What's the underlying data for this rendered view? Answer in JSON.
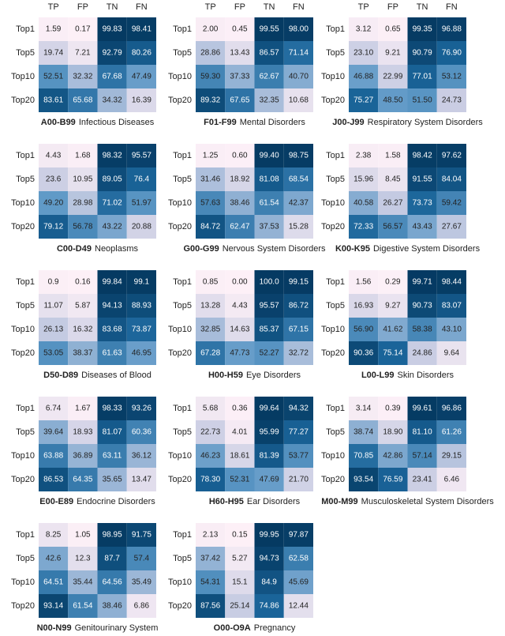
{
  "colorscale": [
    "#fdf0f7",
    "#c9cde3",
    "#5d98c6",
    "#1a6499",
    "#053a62"
  ],
  "vlim": [
    0,
    100
  ],
  "chart_data": [
    {
      "type": "heatmap",
      "code": "A00-B99",
      "title": "Infectious Diseases",
      "columns": [
        "TP",
        "FP",
        "TN",
        "FN"
      ],
      "rows": [
        "Top1",
        "Top5",
        "Top10",
        "Top20"
      ],
      "values": [
        [
          1.59,
          0.17,
          99.83,
          98.41
        ],
        [
          19.74,
          7.21,
          92.79,
          80.26
        ],
        [
          52.51,
          32.32,
          67.68,
          47.49
        ],
        [
          83.61,
          65.68,
          34.32,
          16.39
        ]
      ],
      "value_labels": [
        [
          "1.59",
          "0.17",
          "99.83",
          "98.41"
        ],
        [
          "19.74",
          "7.21",
          "92.79",
          "80.26"
        ],
        [
          "52.51",
          "32.32",
          "67.68",
          "47.49"
        ],
        [
          "83.61",
          "65.68",
          "34.32",
          "16.39"
        ]
      ]
    },
    {
      "type": "heatmap",
      "code": "F01-F99",
      "title": "Mental Disorders",
      "columns": [
        "TP",
        "FP",
        "TN",
        "FN"
      ],
      "rows": [
        "Top1",
        "Top5",
        "Top10",
        "Top20"
      ],
      "values": [
        [
          2.0,
          0.45,
          99.55,
          98.0
        ],
        [
          28.86,
          13.43,
          86.57,
          71.14
        ],
        [
          59.3,
          37.33,
          62.67,
          40.7
        ],
        [
          89.32,
          67.65,
          32.35,
          10.68
        ]
      ],
      "value_labels": [
        [
          "2.00",
          "0.45",
          "99.55",
          "98.00"
        ],
        [
          "28.86",
          "13.43",
          "86.57",
          "71.14"
        ],
        [
          "59.30",
          "37.33",
          "62.67",
          "40.70"
        ],
        [
          "89.32",
          "67.65",
          "32.35",
          "10.68"
        ]
      ]
    },
    {
      "type": "heatmap",
      "code": "J00-J99",
      "title": "Respiratory System Disorders",
      "columns": [
        "TP",
        "FP",
        "TN",
        "FN"
      ],
      "rows": [
        "Top1",
        "Top5",
        "Top10",
        "Top20"
      ],
      "values": [
        [
          3.12,
          0.65,
          99.35,
          96.88
        ],
        [
          23.1,
          9.21,
          90.79,
          76.9
        ],
        [
          46.88,
          22.99,
          77.01,
          53.12
        ],
        [
          75.27,
          48.5,
          51.5,
          24.73
        ]
      ],
      "value_labels": [
        [
          "3.12",
          "0.65",
          "99.35",
          "96.88"
        ],
        [
          "23.10",
          "9.21",
          "90.79",
          "76.90"
        ],
        [
          "46.88",
          "22.99",
          "77.01",
          "53.12"
        ],
        [
          "75.27",
          "48.50",
          "51.50",
          "24.73"
        ]
      ]
    },
    {
      "type": "heatmap",
      "code": "C00-D49",
      "title": "Neoplasms",
      "rows": [
        "Top1",
        "Top5",
        "Top10",
        "Top20"
      ],
      "values": [
        [
          4.43,
          1.68,
          98.32,
          95.57
        ],
        [
          23.6,
          10.95,
          89.05,
          76.4
        ],
        [
          49.2,
          28.98,
          71.02,
          51.97
        ],
        [
          79.12,
          56.78,
          43.22,
          20.88
        ]
      ],
      "value_labels": [
        [
          "4.43",
          "1.68",
          "98.32",
          "95.57"
        ],
        [
          "23.6",
          "10.95",
          "89.05",
          "76.4"
        ],
        [
          "49.20",
          "28.98",
          "71.02",
          "51.97"
        ],
        [
          "79.12",
          "56.78",
          "43.22",
          "20.88"
        ]
      ]
    },
    {
      "type": "heatmap",
      "code": "G00-G99",
      "title": "Nervous System Disorders",
      "rows": [
        "Top1",
        "Top5",
        "Top10",
        "Top20"
      ],
      "values": [
        [
          1.25,
          0.6,
          99.4,
          98.75
        ],
        [
          31.46,
          18.92,
          81.08,
          68.54
        ],
        [
          57.63,
          38.46,
          61.54,
          42.37
        ],
        [
          84.72,
          62.47,
          37.53,
          15.28
        ]
      ],
      "value_labels": [
        [
          "1.25",
          "0.60",
          "99.40",
          "98.75"
        ],
        [
          "31.46",
          "18.92",
          "81.08",
          "68.54"
        ],
        [
          "57.63",
          "38.46",
          "61.54",
          "42.37"
        ],
        [
          "84.72",
          "62.47",
          "37.53",
          "15.28"
        ]
      ]
    },
    {
      "type": "heatmap",
      "code": "K00-K95",
      "title": "Digestive System Disorders",
      "rows": [
        "Top1",
        "Top5",
        "Top10",
        "Top20"
      ],
      "values": [
        [
          2.38,
          1.58,
          98.42,
          97.62
        ],
        [
          15.96,
          8.45,
          91.55,
          84.04
        ],
        [
          40.58,
          26.27,
          73.73,
          59.42
        ],
        [
          72.33,
          56.57,
          43.43,
          27.67
        ]
      ],
      "value_labels": [
        [
          "2.38",
          "1.58",
          "98.42",
          "97.62"
        ],
        [
          "15.96",
          "8.45",
          "91.55",
          "84.04"
        ],
        [
          "40.58",
          "26.27",
          "73.73",
          "59.42"
        ],
        [
          "72.33",
          "56.57",
          "43.43",
          "27.67"
        ]
      ]
    },
    {
      "type": "heatmap",
      "code": "D50-D89",
      "title": "Diseases of Blood",
      "rows": [
        "Top1",
        "Top5",
        "Top10",
        "Top20"
      ],
      "values": [
        [
          0.9,
          0.16,
          99.84,
          99.1
        ],
        [
          11.07,
          5.87,
          94.13,
          88.93
        ],
        [
          26.13,
          16.32,
          83.68,
          73.87
        ],
        [
          53.05,
          38.37,
          61.63,
          46.95
        ]
      ],
      "value_labels": [
        [
          "0.9",
          "0.16",
          "99.84",
          "99.1"
        ],
        [
          "11.07",
          "5.87",
          "94.13",
          "88.93"
        ],
        [
          "26.13",
          "16.32",
          "83.68",
          "73.87"
        ],
        [
          "53.05",
          "38.37",
          "61.63",
          "46.95"
        ]
      ]
    },
    {
      "type": "heatmap",
      "code": "H00-H59",
      "title": "Eye Disorders",
      "rows": [
        "Top1",
        "Top5",
        "Top10",
        "Top20"
      ],
      "values": [
        [
          0.85,
          0.0,
          100.0,
          99.15
        ],
        [
          13.28,
          4.43,
          95.57,
          86.72
        ],
        [
          32.85,
          14.63,
          85.37,
          67.15
        ],
        [
          67.28,
          47.73,
          52.27,
          32.72
        ]
      ],
      "value_labels": [
        [
          "0.85",
          "0.00",
          "100.0",
          "99.15"
        ],
        [
          "13.28",
          "4.43",
          "95.57",
          "86.72"
        ],
        [
          "32.85",
          "14.63",
          "85.37",
          "67.15"
        ],
        [
          "67.28",
          "47.73",
          "52.27",
          "32.72"
        ]
      ]
    },
    {
      "type": "heatmap",
      "code": "L00-L99",
      "title": "Skin Disorders",
      "rows": [
        "Top1",
        "Top5",
        "Top10",
        "Top20"
      ],
      "values": [
        [
          1.56,
          0.29,
          99.71,
          98.44
        ],
        [
          16.93,
          9.27,
          90.73,
          83.07
        ],
        [
          56.9,
          41.62,
          58.38,
          43.1
        ],
        [
          90.36,
          75.14,
          24.86,
          9.64
        ]
      ],
      "value_labels": [
        [
          "1.56",
          "0.29",
          "99.71",
          "98.44"
        ],
        [
          "16.93",
          "9.27",
          "90.73",
          "83.07"
        ],
        [
          "56.90",
          "41.62",
          "58.38",
          "43.10"
        ],
        [
          "90.36",
          "75.14",
          "24.86",
          "9.64"
        ]
      ]
    },
    {
      "type": "heatmap",
      "code": "E00-E89",
      "title": "Endocrine Disorders",
      "rows": [
        "Top1",
        "Top5",
        "Top10",
        "Top20"
      ],
      "values": [
        [
          6.74,
          1.67,
          98.33,
          93.26
        ],
        [
          39.64,
          18.93,
          81.07,
          60.36
        ],
        [
          63.88,
          36.89,
          63.11,
          36.12
        ],
        [
          86.53,
          64.35,
          35.65,
          13.47
        ]
      ],
      "value_labels": [
        [
          "6.74",
          "1.67",
          "98.33",
          "93.26"
        ],
        [
          "39.64",
          "18.93",
          "81.07",
          "60.36"
        ],
        [
          "63.88",
          "36.89",
          "63.11",
          "36.12"
        ],
        [
          "86.53",
          "64.35",
          "35.65",
          "13.47"
        ]
      ]
    },
    {
      "type": "heatmap",
      "code": "H60-H95",
      "title": "Ear Disorders",
      "rows": [
        "Top1",
        "Top5",
        "Top10",
        "Top20"
      ],
      "values": [
        [
          5.68,
          0.36,
          99.64,
          94.32
        ],
        [
          22.73,
          4.01,
          95.99,
          77.27
        ],
        [
          46.23,
          18.61,
          81.39,
          53.77
        ],
        [
          78.3,
          52.31,
          47.69,
          21.7
        ]
      ],
      "value_labels": [
        [
          "5.68",
          "0.36",
          "99.64",
          "94.32"
        ],
        [
          "22.73",
          "4.01",
          "95.99",
          "77.27"
        ],
        [
          "46.23",
          "18.61",
          "81.39",
          "53.77"
        ],
        [
          "78.30",
          "52.31",
          "47.69",
          "21.70"
        ]
      ]
    },
    {
      "type": "heatmap",
      "code": "M00-M99",
      "title": "Musculoskeletal System Disorders",
      "rows": [
        "Top1",
        "Top5",
        "Top10",
        "Top20"
      ],
      "values": [
        [
          3.14,
          0.39,
          99.61,
          96.86
        ],
        [
          38.74,
          18.9,
          81.1,
          61.26
        ],
        [
          70.85,
          42.86,
          57.14,
          29.15
        ],
        [
          93.54,
          76.59,
          23.41,
          6.46
        ]
      ],
      "value_labels": [
        [
          "3.14",
          "0.39",
          "99.61",
          "96.86"
        ],
        [
          "38.74",
          "18.90",
          "81.10",
          "61.26"
        ],
        [
          "70.85",
          "42.86",
          "57.14",
          "29.15"
        ],
        [
          "93.54",
          "76.59",
          "23.41",
          "6.46"
        ]
      ]
    },
    {
      "type": "heatmap",
      "code": "N00-N99",
      "title": "Genitourinary System",
      "rows": [
        "Top1",
        "Top5",
        "Top10",
        "Top20"
      ],
      "values": [
        [
          8.25,
          1.05,
          98.95,
          91.75
        ],
        [
          42.6,
          12.3,
          87.7,
          57.4
        ],
        [
          64.51,
          35.44,
          64.56,
          35.49
        ],
        [
          93.14,
          61.54,
          38.46,
          6.86
        ]
      ],
      "value_labels": [
        [
          "8.25",
          "1.05",
          "98.95",
          "91.75"
        ],
        [
          "42.6",
          "12.3",
          "87.7",
          "57.4"
        ],
        [
          "64.51",
          "35.44",
          "64.56",
          "35.49"
        ],
        [
          "93.14",
          "61.54",
          "38.46",
          "6.86"
        ]
      ]
    },
    {
      "type": "heatmap",
      "code": "O00-O9A",
      "title": "Pregnancy",
      "rows": [
        "Top1",
        "Top5",
        "Top10",
        "Top20"
      ],
      "values": [
        [
          2.13,
          0.15,
          99.95,
          97.87
        ],
        [
          37.42,
          5.27,
          94.73,
          62.58
        ],
        [
          54.31,
          15.1,
          84.9,
          45.69
        ],
        [
          87.56,
          25.14,
          74.86,
          12.44
        ]
      ],
      "value_labels": [
        [
          "2.13",
          "0.15",
          "99.95",
          "97.87"
        ],
        [
          "37.42",
          "5.27",
          "94.73",
          "62.58"
        ],
        [
          "54.31",
          "15.1",
          "84.9",
          "45.69"
        ],
        [
          "87.56",
          "25.14",
          "74.86",
          "12.44"
        ]
      ]
    }
  ]
}
